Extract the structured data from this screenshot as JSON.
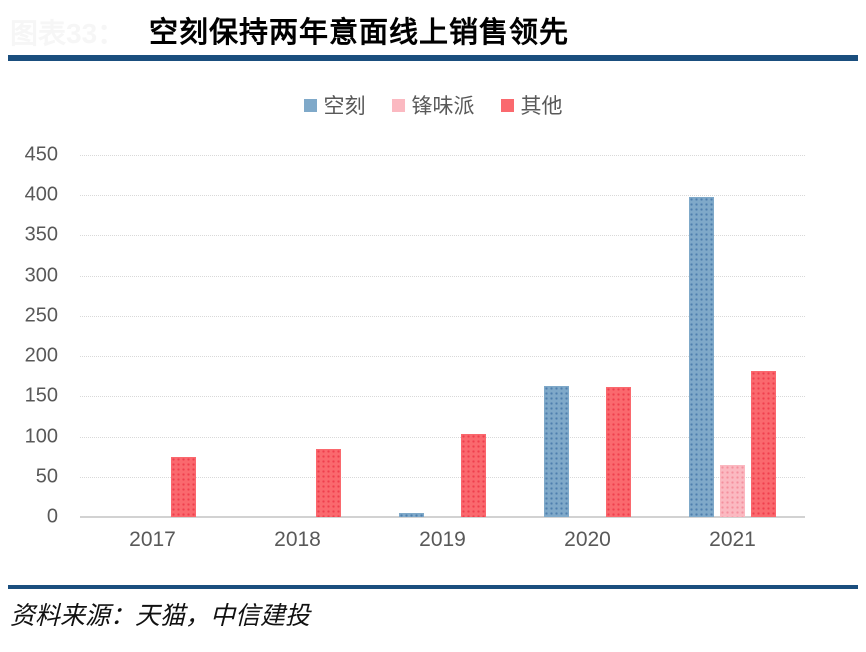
{
  "header": {
    "figure_ref": "图表33：",
    "title": "空刻保持两年意面线上销售领先"
  },
  "footer": {
    "source": "资料来源：天猫，中信建投"
  },
  "colors": {
    "divider": "#1a4e7e",
    "grid": "#d9d9d9",
    "baseline": "#d2d2d2",
    "axis_text": "#595959"
  },
  "chart_data": {
    "type": "bar",
    "title": "空刻保持两年意面线上销售领先",
    "categories": [
      "2017",
      "2018",
      "2019",
      "2020",
      "2021"
    ],
    "series": [
      {
        "name": "空刻",
        "color": "#7fa9c9",
        "dot_color": "#4e7fae",
        "values": [
          0,
          0,
          5,
          163,
          398
        ]
      },
      {
        "name": "锋味派",
        "color": "#fbb9c1",
        "dot_color": "#f4909e",
        "values": [
          0,
          0,
          0,
          0,
          65
        ]
      },
      {
        "name": "其他",
        "color": "#fa696e",
        "dot_color": "#ee3f4d",
        "values": [
          75,
          85,
          103,
          162,
          182
        ]
      }
    ],
    "ylim": [
      0,
      450
    ],
    "ytick_step": 50,
    "legend_position": "top-center",
    "grid": true,
    "xlabel": "",
    "ylabel": ""
  }
}
